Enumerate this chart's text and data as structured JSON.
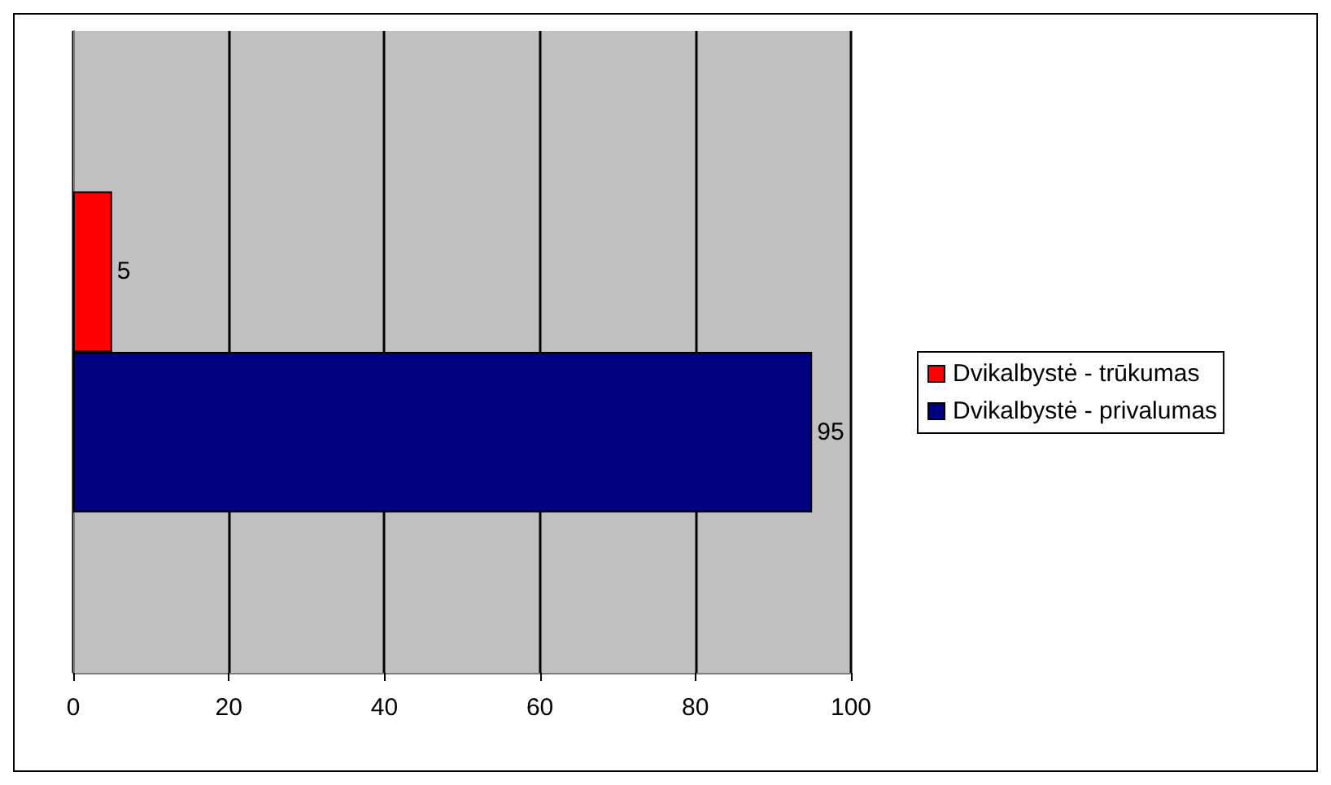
{
  "chart_data": {
    "type": "bar",
    "orientation": "horizontal",
    "categories": [
      null
    ],
    "series": [
      {
        "name": "Dvikalbystė - trūkumas",
        "color": "#ff0000",
        "values": [
          5
        ]
      },
      {
        "name": "Dvikalbystė - privalumas",
        "color": "#000080",
        "values": [
          95
        ]
      }
    ],
    "xlim": [
      0,
      100
    ],
    "xticks": [
      0,
      20,
      40,
      60,
      80,
      100
    ],
    "grid": "x",
    "legend": "right",
    "data_labels": true
  }
}
